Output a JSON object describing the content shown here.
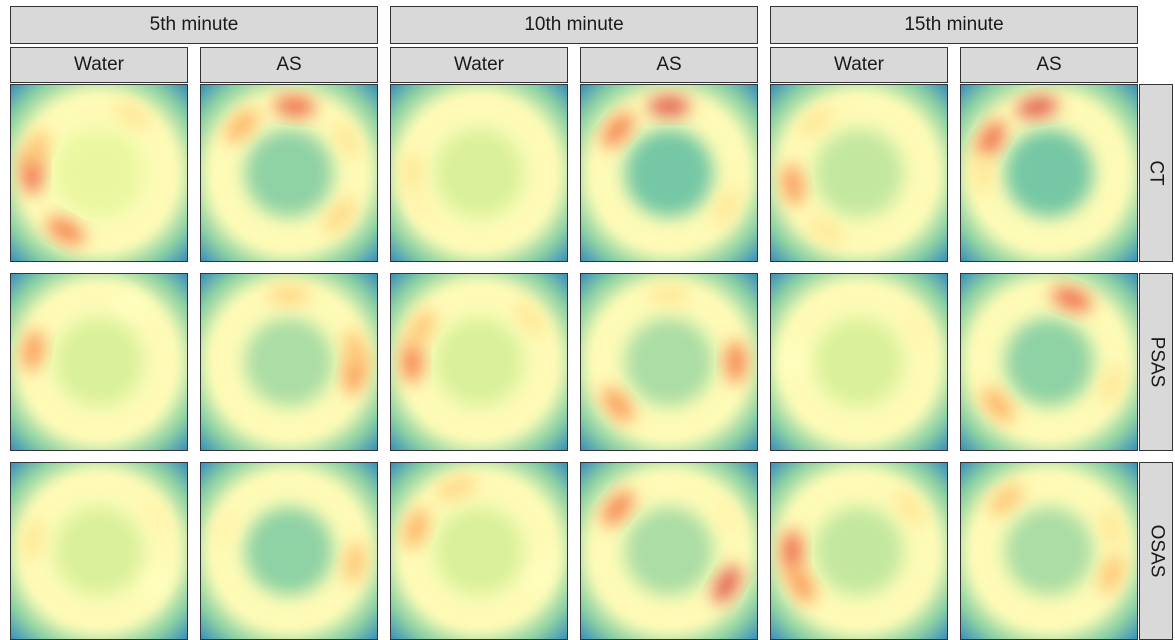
{
  "chart_data": {
    "type": "heatmap",
    "title": "",
    "xlabel": "",
    "ylabel": "",
    "grid": false,
    "legend": "none",
    "time_points": [
      "5th minute",
      "10th minute",
      "15th minute"
    ],
    "solutions": [
      "Water",
      "AS"
    ],
    "groups": [
      "CT",
      "PSAS",
      "OSAS"
    ],
    "colormap": [
      "#3288bd",
      "#66c2a5",
      "#abdda4",
      "#e6f598",
      "#ffffbf",
      "#fee08b",
      "#fdae61",
      "#f46d43",
      "#d53e4f"
    ],
    "panels": [
      {
        "group": "CT",
        "time": "5th minute",
        "solution": "Water",
        "hotspots": [
          {
            "angle": 180,
            "level": 0.9
          },
          {
            "angle": 120,
            "level": 0.85
          },
          {
            "angle": 200,
            "level": 0.7
          },
          {
            "angle": 300,
            "level": 0.6
          }
        ],
        "center_level": 0.4
      },
      {
        "group": "CT",
        "time": "5th minute",
        "solution": "AS",
        "hotspots": [
          {
            "angle": 275,
            "level": 0.9
          },
          {
            "angle": 225,
            "level": 0.75
          },
          {
            "angle": 330,
            "level": 0.6
          },
          {
            "angle": 40,
            "level": 0.65
          }
        ],
        "center_level": 0.2
      },
      {
        "group": "CT",
        "time": "10th minute",
        "solution": "Water",
        "hotspots": [
          {
            "angle": 180,
            "level": 0.6
          },
          {
            "angle": 150,
            "level": 0.55
          }
        ],
        "center_level": 0.35
      },
      {
        "group": "CT",
        "time": "10th minute",
        "solution": "AS",
        "hotspots": [
          {
            "angle": 270,
            "level": 0.95
          },
          {
            "angle": 220,
            "level": 0.85
          },
          {
            "angle": 30,
            "level": 0.6
          }
        ],
        "center_level": 0.15
      },
      {
        "group": "CT",
        "time": "15th minute",
        "solution": "Water",
        "hotspots": [
          {
            "angle": 170,
            "level": 0.8
          },
          {
            "angle": 230,
            "level": 0.6
          },
          {
            "angle": 120,
            "level": 0.6
          }
        ],
        "center_level": 0.3
      },
      {
        "group": "CT",
        "time": "15th minute",
        "solution": "AS",
        "hotspots": [
          {
            "angle": 260,
            "level": 0.95
          },
          {
            "angle": 210,
            "level": 0.9
          },
          {
            "angle": 180,
            "level": 0.6
          }
        ],
        "center_level": 0.15
      },
      {
        "group": "PSAS",
        "time": "5th minute",
        "solution": "Water",
        "hotspots": [
          {
            "angle": 190,
            "level": 0.8
          },
          {
            "angle": 300,
            "level": 0.5
          }
        ],
        "center_level": 0.35
      },
      {
        "group": "PSAS",
        "time": "5th minute",
        "solution": "AS",
        "hotspots": [
          {
            "angle": 10,
            "level": 0.8
          },
          {
            "angle": 350,
            "level": 0.7
          },
          {
            "angle": 270,
            "level": 0.65
          }
        ],
        "center_level": 0.25
      },
      {
        "group": "PSAS",
        "time": "10th minute",
        "solution": "Water",
        "hotspots": [
          {
            "angle": 180,
            "level": 0.85
          },
          {
            "angle": 210,
            "level": 0.7
          },
          {
            "angle": 320,
            "level": 0.6
          }
        ],
        "center_level": 0.35
      },
      {
        "group": "PSAS",
        "time": "10th minute",
        "solution": "AS",
        "hotspots": [
          {
            "angle": 0,
            "level": 0.85
          },
          {
            "angle": 140,
            "level": 0.8
          },
          {
            "angle": 270,
            "level": 0.6
          }
        ],
        "center_level": 0.25
      },
      {
        "group": "PSAS",
        "time": "15th minute",
        "solution": "Water",
        "hotspots": [
          {
            "angle": 330,
            "level": 0.55
          },
          {
            "angle": 180,
            "level": 0.5
          }
        ],
        "center_level": 0.35
      },
      {
        "group": "PSAS",
        "time": "15th minute",
        "solution": "AS",
        "hotspots": [
          {
            "angle": 290,
            "level": 0.9
          },
          {
            "angle": 140,
            "level": 0.75
          },
          {
            "angle": 20,
            "level": 0.6
          }
        ],
        "center_level": 0.2
      },
      {
        "group": "OSAS",
        "time": "5th minute",
        "solution": "Water",
        "hotspots": [
          {
            "angle": 190,
            "level": 0.6
          },
          {
            "angle": 330,
            "level": 0.55
          },
          {
            "angle": 30,
            "level": 0.5
          }
        ],
        "center_level": 0.35
      },
      {
        "group": "OSAS",
        "time": "5th minute",
        "solution": "AS",
        "hotspots": [
          {
            "angle": 10,
            "level": 0.7
          },
          {
            "angle": 200,
            "level": 0.55
          }
        ],
        "center_level": 0.2
      },
      {
        "group": "OSAS",
        "time": "10th minute",
        "solution": "Water",
        "hotspots": [
          {
            "angle": 200,
            "level": 0.75
          },
          {
            "angle": 250,
            "level": 0.65
          },
          {
            "angle": 20,
            "level": 0.5
          }
        ],
        "center_level": 0.35
      },
      {
        "group": "OSAS",
        "time": "10th minute",
        "solution": "AS",
        "hotspots": [
          {
            "angle": 220,
            "level": 0.85
          },
          {
            "angle": 30,
            "level": 0.95
          },
          {
            "angle": 330,
            "level": 0.55
          }
        ],
        "center_level": 0.25
      },
      {
        "group": "OSAS",
        "time": "15th minute",
        "solution": "Water",
        "hotspots": [
          {
            "angle": 180,
            "level": 0.9
          },
          {
            "angle": 150,
            "level": 0.8
          },
          {
            "angle": 320,
            "level": 0.6
          }
        ],
        "center_level": 0.3
      },
      {
        "group": "OSAS",
        "time": "15th minute",
        "solution": "AS",
        "hotspots": [
          {
            "angle": 230,
            "level": 0.7
          },
          {
            "angle": 20,
            "level": 0.7
          },
          {
            "angle": 340,
            "level": 0.6
          }
        ],
        "center_level": 0.25
      }
    ]
  }
}
